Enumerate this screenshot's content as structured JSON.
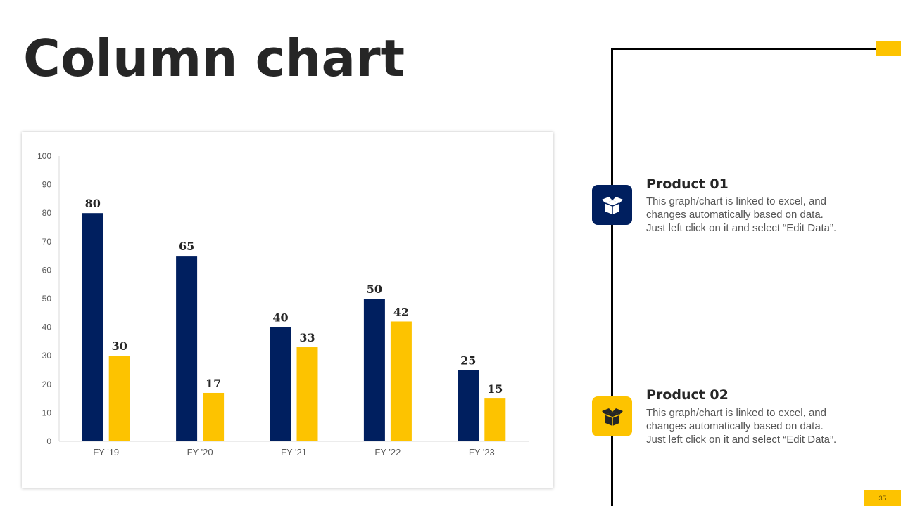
{
  "title": "Column chart",
  "chart_data": {
    "type": "bar",
    "categories": [
      "FY '19",
      "FY '20",
      "FY '21",
      "FY '22",
      "FY '23"
    ],
    "series": [
      {
        "name": "Product 01",
        "color": "#001F5F",
        "values": [
          80,
          65,
          40,
          50,
          25
        ]
      },
      {
        "name": "Product 02",
        "color": "#FDC300",
        "values": [
          30,
          17,
          33,
          42,
          15
        ]
      }
    ],
    "yticks": [
      0,
      10,
      20,
      30,
      40,
      50,
      60,
      70,
      80,
      90,
      100
    ],
    "ylim": [
      0,
      100
    ],
    "title": "",
    "xlabel": "",
    "ylabel": ""
  },
  "products": [
    {
      "title": "Product 01",
      "desc_lines": [
        "This graph/chart is linked to excel, and",
        "changes automatically based on data.",
        "Just left click on it and select “Edit Data”."
      ],
      "icon": "open-box-icon",
      "color": "#001F5F"
    },
    {
      "title": "Product 02",
      "desc_lines": [
        "This graph/chart is linked to excel, and",
        "changes automatically based on data.",
        "Just left click on it and select “Edit Data”."
      ],
      "icon": "open-box-icon",
      "color": "#FDC300"
    }
  ],
  "page_number": "35"
}
